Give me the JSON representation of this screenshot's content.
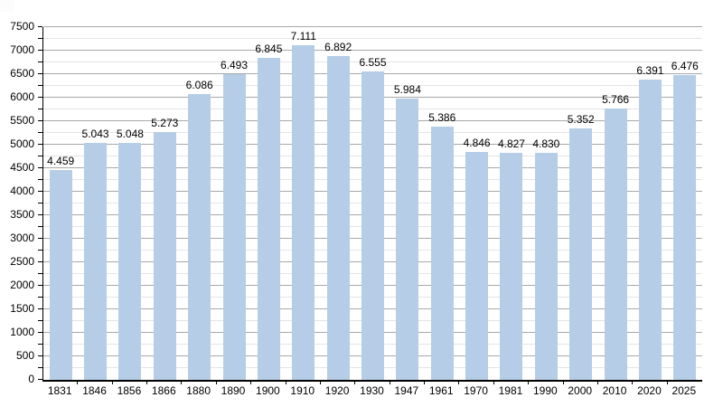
{
  "chart_data": {
    "type": "bar",
    "title": "",
    "xlabel": "",
    "ylabel": "",
    "categories": [
      "1831",
      "1846",
      "1856",
      "1866",
      "1880",
      "1890",
      "1900",
      "1910",
      "1920",
      "1930",
      "1947",
      "1961",
      "1970",
      "1981",
      "1990",
      "2000",
      "2010",
      "2020",
      "2025"
    ],
    "values": [
      4459,
      5043,
      5048,
      5273,
      6086,
      6493,
      6845,
      7111,
      6892,
      6555,
      5984,
      5386,
      4846,
      4827,
      4830,
      5352,
      5766,
      6391,
      6476
    ],
    "value_labels": [
      "4.459",
      "5.043",
      "5.048",
      "5.273",
      "6.086",
      "6.493",
      "6.845",
      "7.111",
      "6.892",
      "6.555",
      "5.984",
      "5.386",
      "4.846",
      "4.827",
      "4.830",
      "5.352",
      "5.766",
      "6.391",
      "6.476"
    ],
    "ylim": [
      0,
      7500
    ],
    "y_major_step": 500,
    "y_minor_step": 250,
    "y_tick_labels": [
      "0",
      "500",
      "1000",
      "1500",
      "2000",
      "2500",
      "3000",
      "3500",
      "4000",
      "4500",
      "5000",
      "5500",
      "6000",
      "6500",
      "7000",
      "7500"
    ],
    "grid": true,
    "legend": "none"
  },
  "colors": {
    "bar": "#b5cde6",
    "major_grid": "#a8a8a8",
    "minor_grid": "#e4e4e4",
    "axis": "#000000",
    "text": "#000000",
    "background": "#ffffff"
  }
}
